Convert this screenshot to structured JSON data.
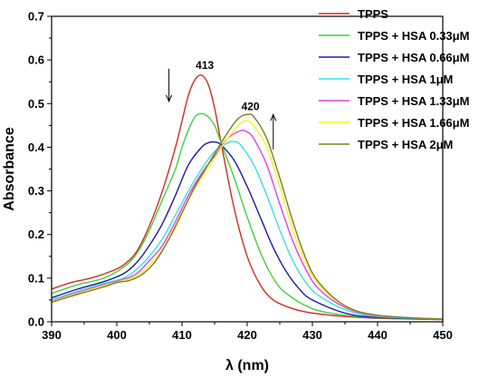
{
  "chart_data": {
    "type": "line",
    "xlabel": "λ (nm)",
    "ylabel": "Absorbance",
    "xlim": [
      390,
      450
    ],
    "ylim": [
      0.0,
      0.7
    ],
    "x_ticks": [
      "390",
      "400",
      "410",
      "420",
      "430",
      "440",
      "450"
    ],
    "y_ticks": [
      "0.0",
      "0.1",
      "0.2",
      "0.3",
      "0.4",
      "0.5",
      "0.6",
      "0.7"
    ],
    "grid": false,
    "legend_position": "top-right",
    "series": [
      {
        "name": "TPPS",
        "color": "#d42a1f",
        "points": [
          [
            390,
            0.075
          ],
          [
            393,
            0.09
          ],
          [
            396,
            0.1
          ],
          [
            399,
            0.115
          ],
          [
            401,
            0.13
          ],
          [
            403,
            0.16
          ],
          [
            405,
            0.22
          ],
          [
            407,
            0.3
          ],
          [
            409,
            0.4
          ],
          [
            410,
            0.46
          ],
          [
            411,
            0.52
          ],
          [
            412,
            0.555
          ],
          [
            413,
            0.565
          ],
          [
            414,
            0.545
          ],
          [
            415,
            0.49
          ],
          [
            416,
            0.41
          ],
          [
            418,
            0.26
          ],
          [
            420,
            0.15
          ],
          [
            422,
            0.085
          ],
          [
            424,
            0.05
          ],
          [
            427,
            0.03
          ],
          [
            430,
            0.02
          ],
          [
            435,
            0.012
          ],
          [
            440,
            0.008
          ],
          [
            450,
            0.005
          ]
        ]
      },
      {
        "name": "TPPS + HSA 0.33μM",
        "color": "#3fd13f",
        "points": [
          [
            390,
            0.065
          ],
          [
            394,
            0.085
          ],
          [
            398,
            0.1
          ],
          [
            401,
            0.125
          ],
          [
            403,
            0.155
          ],
          [
            405,
            0.21
          ],
          [
            407,
            0.28
          ],
          [
            409,
            0.35
          ],
          [
            410,
            0.4
          ],
          [
            411,
            0.44
          ],
          [
            412,
            0.47
          ],
          [
            413,
            0.477
          ],
          [
            414,
            0.47
          ],
          [
            415,
            0.45
          ],
          [
            416,
            0.41
          ],
          [
            418,
            0.33
          ],
          [
            420,
            0.24
          ],
          [
            422,
            0.16
          ],
          [
            424,
            0.1
          ],
          [
            426,
            0.065
          ],
          [
            430,
            0.03
          ],
          [
            435,
            0.015
          ],
          [
            440,
            0.009
          ],
          [
            450,
            0.006
          ]
        ]
      },
      {
        "name": "TPPS + HSA 0.66μM",
        "color": "#1a1aa8",
        "points": [
          [
            390,
            0.055
          ],
          [
            394,
            0.075
          ],
          [
            398,
            0.092
          ],
          [
            401,
            0.11
          ],
          [
            403,
            0.135
          ],
          [
            405,
            0.175
          ],
          [
            407,
            0.225
          ],
          [
            409,
            0.29
          ],
          [
            411,
            0.36
          ],
          [
            413,
            0.4
          ],
          [
            414,
            0.41
          ],
          [
            415,
            0.412
          ],
          [
            416,
            0.405
          ],
          [
            418,
            0.37
          ],
          [
            420,
            0.31
          ],
          [
            422,
            0.24
          ],
          [
            424,
            0.17
          ],
          [
            426,
            0.115
          ],
          [
            428,
            0.075
          ],
          [
            430,
            0.05
          ],
          [
            435,
            0.02
          ],
          [
            440,
            0.01
          ],
          [
            450,
            0.006
          ]
        ]
      },
      {
        "name": "TPPS + HSA 1μM",
        "color": "#35e0e6",
        "points": [
          [
            390,
            0.05
          ],
          [
            394,
            0.07
          ],
          [
            398,
            0.088
          ],
          [
            401,
            0.1
          ],
          [
            403,
            0.12
          ],
          [
            405,
            0.15
          ],
          [
            407,
            0.19
          ],
          [
            409,
            0.245
          ],
          [
            411,
            0.3
          ],
          [
            413,
            0.35
          ],
          [
            415,
            0.39
          ],
          [
            417,
            0.41
          ],
          [
            418,
            0.413
          ],
          [
            419,
            0.405
          ],
          [
            421,
            0.36
          ],
          [
            423,
            0.29
          ],
          [
            425,
            0.21
          ],
          [
            427,
            0.14
          ],
          [
            429,
            0.09
          ],
          [
            431,
            0.06
          ],
          [
            435,
            0.028
          ],
          [
            440,
            0.012
          ],
          [
            450,
            0.006
          ]
        ]
      },
      {
        "name": "TPPS + HSA 1.33μM",
        "color": "#e043e0",
        "points": [
          [
            390,
            0.048
          ],
          [
            394,
            0.067
          ],
          [
            398,
            0.085
          ],
          [
            401,
            0.097
          ],
          [
            403,
            0.11
          ],
          [
            405,
            0.14
          ],
          [
            407,
            0.175
          ],
          [
            409,
            0.23
          ],
          [
            411,
            0.29
          ],
          [
            413,
            0.34
          ],
          [
            415,
            0.38
          ],
          [
            417,
            0.42
          ],
          [
            419,
            0.438
          ],
          [
            420,
            0.435
          ],
          [
            421,
            0.42
          ],
          [
            423,
            0.36
          ],
          [
            425,
            0.27
          ],
          [
            427,
            0.185
          ],
          [
            429,
            0.12
          ],
          [
            431,
            0.075
          ],
          [
            435,
            0.033
          ],
          [
            440,
            0.014
          ],
          [
            450,
            0.006
          ]
        ]
      },
      {
        "name": "TPPS + HSA 1.66μM",
        "color": "#f5f523",
        "points": [
          [
            390,
            0.047
          ],
          [
            394,
            0.065
          ],
          [
            398,
            0.083
          ],
          [
            401,
            0.095
          ],
          [
            403,
            0.105
          ],
          [
            405,
            0.13
          ],
          [
            407,
            0.165
          ],
          [
            409,
            0.215
          ],
          [
            411,
            0.28
          ],
          [
            413,
            0.33
          ],
          [
            415,
            0.375
          ],
          [
            417,
            0.42
          ],
          [
            419,
            0.455
          ],
          [
            420,
            0.46
          ],
          [
            421,
            0.45
          ],
          [
            423,
            0.4
          ],
          [
            425,
            0.31
          ],
          [
            427,
            0.21
          ],
          [
            429,
            0.135
          ],
          [
            431,
            0.085
          ],
          [
            435,
            0.036
          ],
          [
            440,
            0.015
          ],
          [
            450,
            0.006
          ]
        ]
      },
      {
        "name": "TPPS + HSA 2μM",
        "color": "#807a23",
        "points": [
          [
            390,
            0.045
          ],
          [
            394,
            0.063
          ],
          [
            398,
            0.08
          ],
          [
            400,
            0.09
          ],
          [
            402,
            0.095
          ],
          [
            404,
            0.11
          ],
          [
            406,
            0.14
          ],
          [
            408,
            0.19
          ],
          [
            410,
            0.25
          ],
          [
            412,
            0.31
          ],
          [
            414,
            0.36
          ],
          [
            416,
            0.41
          ],
          [
            418,
            0.455
          ],
          [
            419,
            0.47
          ],
          [
            420,
            0.475
          ],
          [
            421,
            0.47
          ],
          [
            423,
            0.42
          ],
          [
            425,
            0.33
          ],
          [
            427,
            0.23
          ],
          [
            429,
            0.145
          ],
          [
            431,
            0.09
          ],
          [
            435,
            0.037
          ],
          [
            440,
            0.015
          ],
          [
            450,
            0.006
          ]
        ]
      }
    ],
    "annotations": [
      {
        "text": "413",
        "x": 413.5,
        "y": 0.58
      },
      {
        "text": "420",
        "x": 420.5,
        "y": 0.485
      }
    ],
    "arrows": [
      {
        "direction": "down",
        "x": 408.0,
        "y_from": 0.58,
        "y_to": 0.505
      },
      {
        "direction": "up",
        "x": 424.0,
        "y_from": 0.395,
        "y_to": 0.475
      }
    ]
  }
}
